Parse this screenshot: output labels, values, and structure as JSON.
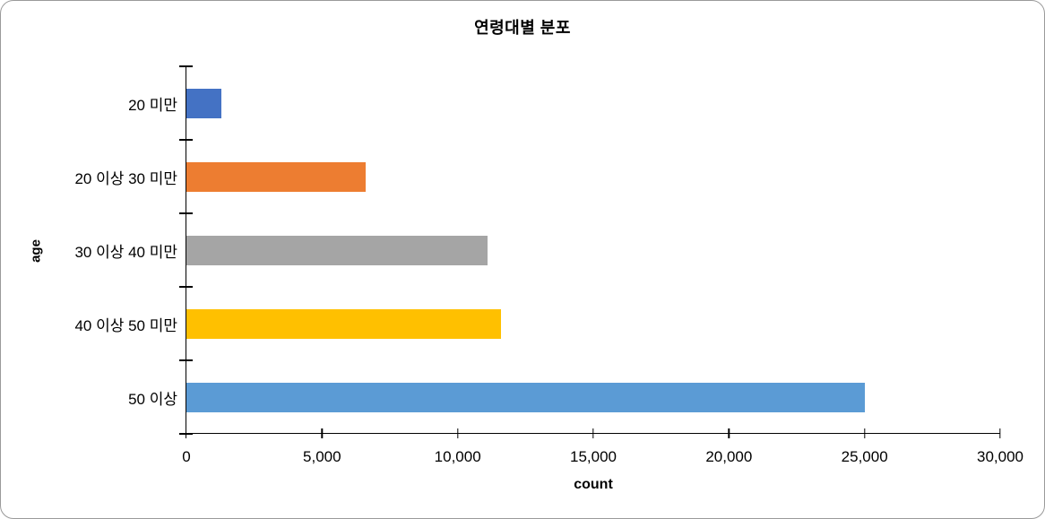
{
  "frame": {
    "background": "#FFFFFF",
    "border_color": "#9A9A9A"
  },
  "chart_data": {
    "type": "bar",
    "orientation": "horizontal",
    "title": "연령대별 분포",
    "xlabel": "count",
    "ylabel": "age",
    "categories": [
      "20 미만",
      "20 이상 30 미만",
      "30 이상 40 미만",
      "40 이상 50 미만",
      "50 이상"
    ],
    "values": [
      1300,
      6600,
      11100,
      11600,
      25000
    ],
    "bar_colors": [
      "#4472C4",
      "#ED7D31",
      "#A5A5A5",
      "#FFC000",
      "#5B9BD5"
    ],
    "xlim": [
      0,
      30000
    ],
    "x_tick_interval": 5000,
    "x_tick_labels": [
      "0",
      "5,000",
      "10,000",
      "15,000",
      "20,000",
      "25,000",
      "30,000"
    ],
    "grid": false,
    "legend": false,
    "axis_color": "#000000"
  }
}
